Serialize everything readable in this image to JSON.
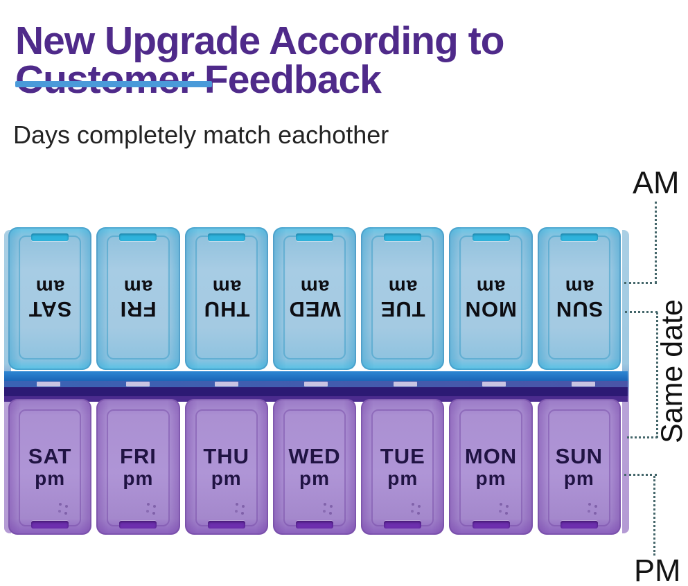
{
  "header": {
    "title_line1": "New Upgrade According to",
    "title_line2": "Customer Feedback",
    "subtitle": "Days completely match eachother"
  },
  "annotations": {
    "am": "AM",
    "same_date": "Same date",
    "pm": "PM"
  },
  "organizer": {
    "days": [
      "SAT",
      "FRI",
      "THU",
      "WED",
      "TUE",
      "MON",
      "SUN"
    ],
    "am_suffix": "am",
    "pm_suffix": "pm"
  },
  "colors": {
    "heading": "#4f2a8a",
    "underline": "#4a9ad9",
    "am_lid": "#a7cce4",
    "am_latch": "#2fb3dc",
    "pm_lid": "#ab90d2",
    "pm_latch": "#6d2fae",
    "hinge_blue": "#1e6fc4",
    "hinge_navy": "#2c1a74",
    "dotted_line": "#44666a"
  }
}
